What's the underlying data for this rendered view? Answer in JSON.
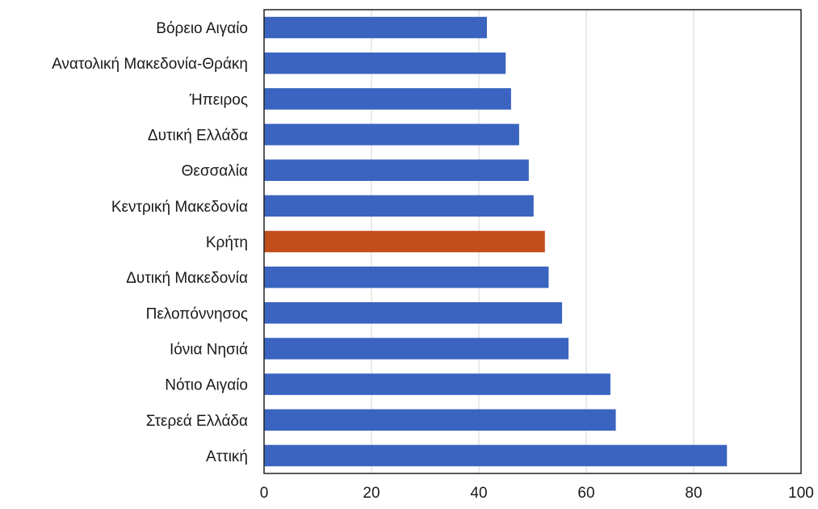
{
  "chart_data": {
    "type": "bar",
    "orientation": "horizontal",
    "categories": [
      "Βόρειο Αιγαίο",
      "Ανατολική Μακεδονία-Θράκη",
      "Ήπειρος",
      "Δυτική Ελλάδα",
      "Θεσσαλία",
      "Κεντρική Μακεδονία",
      "Κρήτη",
      "Δυτική Μακεδονία",
      "Πελοπόννησος",
      "Ιόνια Νησιά",
      "Νότιο Αιγαίο",
      "Στερεά Ελλάδα",
      "Αττική"
    ],
    "values": [
      41.5,
      45,
      46,
      47.5,
      49.3,
      50.2,
      52.3,
      53,
      55.5,
      56.7,
      64.5,
      65.5,
      86.2
    ],
    "highlight_index": 6,
    "xlim": [
      0,
      100
    ],
    "xticks": [
      0,
      20,
      40,
      60,
      80,
      100
    ],
    "grid": true,
    "title": "",
    "xlabel": "",
    "ylabel": "",
    "colors": {
      "bar": "#3a64c0",
      "highlight": "#c24e1c"
    }
  }
}
